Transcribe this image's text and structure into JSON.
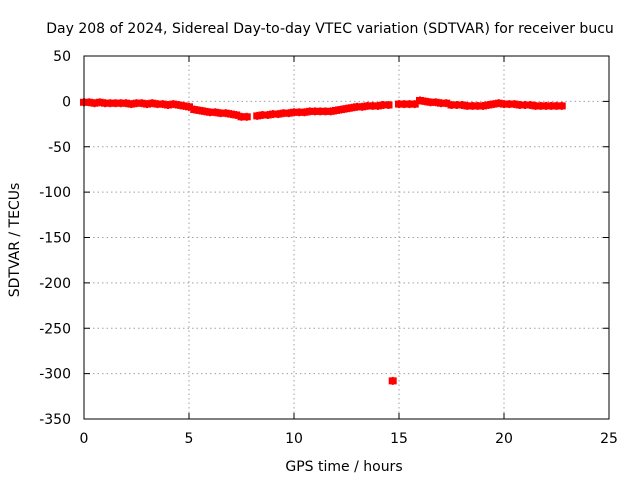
{
  "chart_data": {
    "type": "scatter",
    "title": "Day 208 of 2024, Sidereal Day-to-day VTEC variation (SDTVAR) for receiver bucu",
    "xlabel": "GPS time / hours",
    "ylabel": "SDTVAR / TECUs",
    "xlim": [
      0,
      25
    ],
    "ylim": [
      -350,
      50
    ],
    "xticks": [
      0,
      5,
      10,
      15,
      20,
      25
    ],
    "yticks": [
      50,
      0,
      -50,
      -100,
      -150,
      -200,
      -250,
      -300,
      -350
    ],
    "grid": true,
    "marker_color": "#ff0000",
    "series": [
      {
        "name": "SDTVAR",
        "x": [
          0.0,
          0.25,
          0.5,
          0.75,
          1.0,
          1.25,
          1.5,
          1.75,
          2.0,
          2.25,
          2.5,
          2.75,
          3.0,
          3.25,
          3.5,
          3.75,
          4.0,
          4.25,
          4.5,
          4.75,
          5.0,
          5.25,
          5.5,
          5.75,
          6.0,
          6.25,
          6.5,
          6.75,
          7.0,
          7.25,
          7.5,
          7.75,
          8.25,
          8.5,
          8.75,
          9.0,
          9.25,
          9.5,
          9.75,
          10.0,
          10.25,
          10.5,
          10.75,
          11.0,
          11.25,
          11.5,
          11.75,
          12.0,
          12.25,
          12.5,
          12.75,
          13.0,
          13.25,
          13.5,
          13.75,
          14.0,
          14.25,
          14.5,
          14.7,
          15.0,
          15.25,
          15.5,
          15.75,
          16.0,
          16.25,
          16.5,
          16.75,
          17.0,
          17.25,
          17.5,
          17.75,
          18.0,
          18.25,
          18.5,
          18.75,
          19.0,
          19.25,
          19.5,
          19.75,
          20.0,
          20.25,
          20.5,
          20.75,
          21.0,
          21.25,
          21.5,
          21.75,
          22.0,
          22.25,
          22.5,
          22.75
        ],
        "y": [
          -1,
          -1,
          -2,
          -1,
          -2,
          -2,
          -2,
          -2,
          -2,
          -3,
          -2,
          -2,
          -3,
          -2,
          -3,
          -3,
          -4,
          -3,
          -4,
          -5,
          -6,
          -9,
          -10,
          -11,
          -12,
          -12,
          -13,
          -13,
          -14,
          -15,
          -17,
          -17,
          -16,
          -15,
          -15,
          -14,
          -14,
          -13,
          -13,
          -12,
          -12,
          -12,
          -11,
          -11,
          -11,
          -11,
          -11,
          -10,
          -9,
          -8,
          -7,
          -6,
          -6,
          -5,
          -5,
          -5,
          -4,
          -4,
          -308,
          -3,
          -3,
          -3,
          -3,
          1,
          0,
          -1,
          -1,
          -2,
          -2,
          -4,
          -4,
          -4,
          -5,
          -5,
          -5,
          -5,
          -4,
          -3,
          -2,
          -3,
          -3,
          -3,
          -4,
          -4,
          -4,
          -5,
          -5,
          -5,
          -5,
          -5,
          -5
        ]
      }
    ]
  }
}
